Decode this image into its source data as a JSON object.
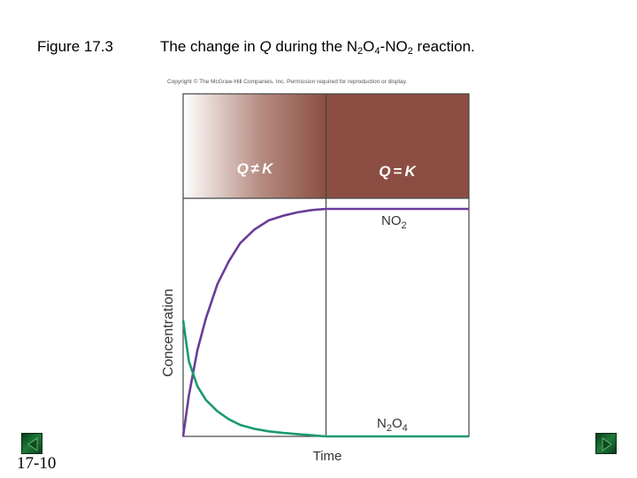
{
  "slide": {
    "figure_label": "Figure 17.3",
    "title_prefix": "The change in ",
    "title_q": "Q",
    "title_mid": " during the N",
    "title_sub1": "2",
    "title_o": "O",
    "title_sub2": "4",
    "title_no": "-NO",
    "title_sub3": "2",
    "title_suffix": " reaction.",
    "copyright": "Copyright © The McGraw-Hill Companies, Inc. Permission required for reproduction or display.",
    "slide_number": "17-10"
  },
  "nav": {
    "prev_icon": "triangle-left-icon",
    "next_icon": "triangle-right-icon"
  },
  "chart_data": {
    "type": "line",
    "xlabel": "Time",
    "ylabel": "Concentration",
    "xlim": [
      0,
      1
    ],
    "ylim": [
      0,
      1
    ],
    "grid": false,
    "regions": [
      {
        "label_left": "Q",
        "label_op": "≠",
        "label_right": "K",
        "x_range": [
          0,
          0.5
        ]
      },
      {
        "label_left": "Q",
        "label_op": "=",
        "label_right": "K",
        "x_range": [
          0.5,
          1
        ]
      }
    ],
    "equilibrium_time": 0.5,
    "series": [
      {
        "name_main": "NO",
        "name_sub": "2",
        "color": "#6a3d9a",
        "x": [
          0,
          0.02,
          0.05,
          0.08,
          0.12,
          0.16,
          0.2,
          0.25,
          0.3,
          0.35,
          0.4,
          0.45,
          0.5,
          0.6,
          0.7,
          0.8,
          0.9,
          1.0
        ],
        "values": [
          0.0,
          0.18,
          0.38,
          0.52,
          0.67,
          0.77,
          0.85,
          0.91,
          0.95,
          0.97,
          0.985,
          0.995,
          1.0,
          1.0,
          1.0,
          1.0,
          1.0,
          1.0
        ]
      },
      {
        "name_main": "N",
        "name_sub": "2",
        "name_main2": "O",
        "name_sub2": "4",
        "color": "#1b9a6b",
        "x": [
          0,
          0.02,
          0.05,
          0.08,
          0.12,
          0.16,
          0.2,
          0.25,
          0.3,
          0.35,
          0.4,
          0.45,
          0.5,
          0.6,
          0.7,
          0.8,
          0.9,
          1.0
        ],
        "values": [
          0.51,
          0.33,
          0.22,
          0.16,
          0.11,
          0.075,
          0.05,
          0.033,
          0.022,
          0.015,
          0.01,
          0.005,
          0.0,
          0.0,
          0.0,
          0.0,
          0.0,
          0.0
        ]
      }
    ],
    "colors": {
      "region_dark": "#8c4e43",
      "region_light": "#ffffff",
      "frame": "#444444"
    }
  }
}
